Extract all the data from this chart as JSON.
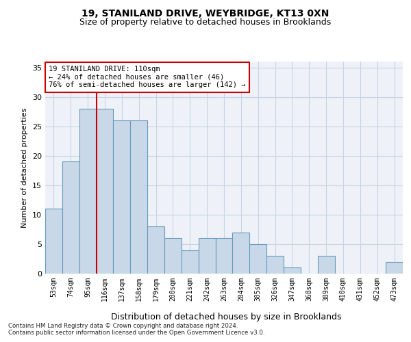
{
  "title1": "19, STANILAND DRIVE, WEYBRIDGE, KT13 0XN",
  "title2": "Size of property relative to detached houses in Brooklands",
  "xlabel": "Distribution of detached houses by size in Brooklands",
  "ylabel": "Number of detached properties",
  "categories": [
    "53sqm",
    "74sqm",
    "95sqm",
    "116sqm",
    "137sqm",
    "158sqm",
    "179sqm",
    "200sqm",
    "221sqm",
    "242sqm",
    "263sqm",
    "284sqm",
    "305sqm",
    "326sqm",
    "347sqm",
    "368sqm",
    "389sqm",
    "410sqm",
    "431sqm",
    "452sqm",
    "473sqm"
  ],
  "values": [
    11,
    19,
    28,
    28,
    26,
    26,
    8,
    6,
    4,
    6,
    6,
    7,
    5,
    3,
    1,
    0,
    3,
    0,
    0,
    0,
    2
  ],
  "bar_color": "#c8d8e8",
  "bar_edge_color": "#6699bb",
  "vline_x": 2.5,
  "vline_color": "#cc0000",
  "annotation_line1": "19 STANILAND DRIVE: 110sqm",
  "annotation_line2": "← 24% of detached houses are smaller (46)",
  "annotation_line3": "76% of semi-detached houses are larger (142) →",
  "annotation_box_color": "#ffffff",
  "annotation_box_edge": "#cc0000",
  "ylim": [
    0,
    36
  ],
  "yticks": [
    0,
    5,
    10,
    15,
    20,
    25,
    30,
    35
  ],
  "grid_color": "#c8d4e0",
  "bg_color": "#eef2f8",
  "footer1": "Contains HM Land Registry data © Crown copyright and database right 2024.",
  "footer2": "Contains public sector information licensed under the Open Government Licence v3.0."
}
